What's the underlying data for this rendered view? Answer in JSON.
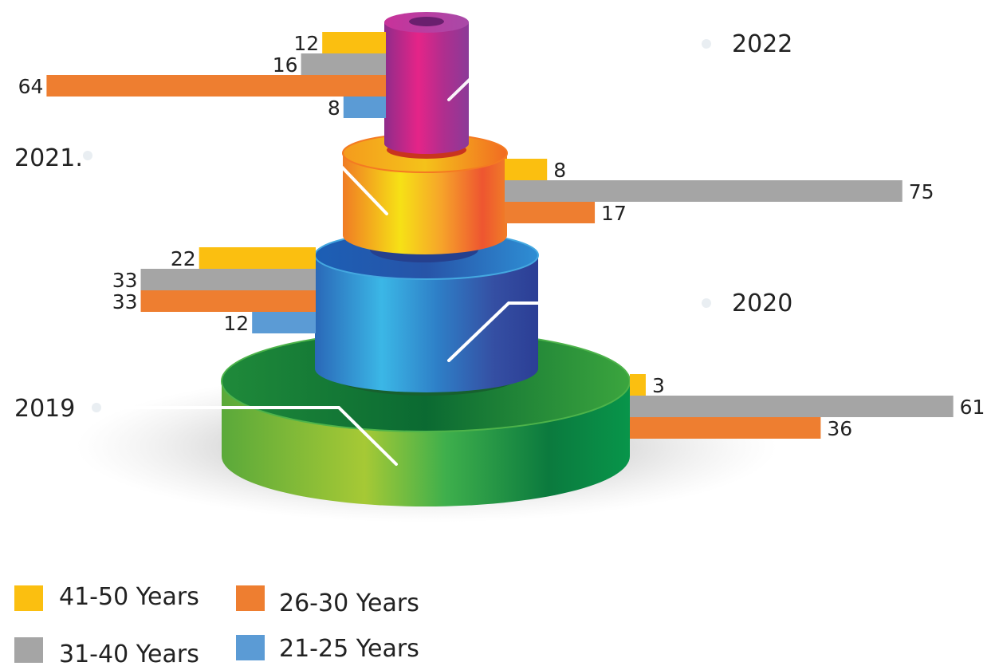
{
  "chart_data": {
    "type": "bar",
    "orientation": "horizontal",
    "series": [
      {
        "name": "41-50 Years",
        "color": "#FBBF10"
      },
      {
        "name": "31-40 Years",
        "color": "#A5A5A5"
      },
      {
        "name": "26-30 Years",
        "color": "#EE7E30"
      },
      {
        "name": "21-25 Years",
        "color": "#5B9BD5"
      }
    ],
    "groups": [
      {
        "year": "2022",
        "side": "left",
        "values": [
          {
            "series": "41-50 Years",
            "value": 12
          },
          {
            "series": "31-40 Years",
            "value": 16
          },
          {
            "series": "26-30 Years",
            "value": 64
          },
          {
            "series": "21-25 Years",
            "value": 8
          }
        ]
      },
      {
        "year": "2021.",
        "side": "right",
        "values": [
          {
            "series": "41-50 Years",
            "value": 8
          },
          {
            "series": "31-40 Years",
            "value": 75
          },
          {
            "series": "26-30 Years",
            "value": 17
          }
        ]
      },
      {
        "year": "2020",
        "side": "left",
        "values": [
          {
            "series": "41-50 Years",
            "value": 22
          },
          {
            "series": "31-40 Years",
            "value": 33
          },
          {
            "series": "26-30 Years",
            "value": 33
          },
          {
            "series": "21-25 Years",
            "value": 12
          }
        ]
      },
      {
        "year": "2019",
        "side": "right",
        "values": [
          {
            "series": "41-50 Years",
            "value": 3
          },
          {
            "series": "31-40 Years",
            "value": 61
          },
          {
            "series": "26-30 Years",
            "value": 36
          }
        ]
      }
    ],
    "legend": {
      "position": "bottom-left"
    },
    "grid": false
  }
}
